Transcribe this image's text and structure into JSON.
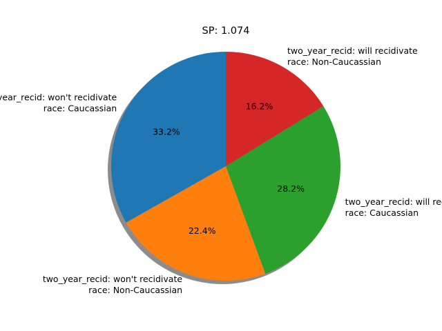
{
  "chart_data": {
    "type": "pie",
    "title": "SP: 1.074",
    "shadow": true,
    "start_angle": 90,
    "direction": "counterclockwise",
    "slices": [
      {
        "label_line1": "two_year_recid: won't recidivate",
        "label_line2": "race: Caucassian",
        "percent_label": "33.2%",
        "value": 33.2,
        "color": "#1f77b4"
      },
      {
        "label_line1": "two_year_recid: won't recidivate",
        "label_line2": "race: Non-Caucassian",
        "percent_label": "22.4%",
        "value": 22.4,
        "color": "#ff7f0e"
      },
      {
        "label_line1": "two_year_recid: will recidivate",
        "label_line2": "race: Caucassian",
        "percent_label": "28.2%",
        "value": 28.2,
        "color": "#2ca02c"
      },
      {
        "label_line1": "two_year_recid: will recidivate",
        "label_line2": "race: Non-Caucassian",
        "percent_label": "16.2%",
        "value": 16.2,
        "color": "#d62728"
      }
    ]
  }
}
